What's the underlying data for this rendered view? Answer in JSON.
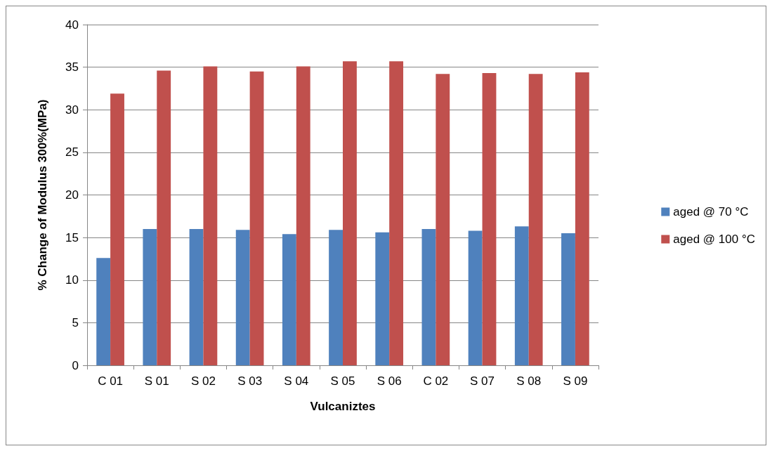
{
  "chart_data": {
    "type": "bar",
    "xlabel": "Vulcaniztes",
    "ylabel": "% Change of Modulus 300%(MPa)",
    "categories": [
      "C 01",
      "S 01",
      "S 02",
      "S 03",
      "S 04",
      "S 05",
      "S 06",
      "C 02",
      "S 07",
      "S 08",
      "S 09"
    ],
    "series": [
      {
        "name": "aged @ 70 °C",
        "color": "#4f81bd",
        "values": [
          12.6,
          16.0,
          16.0,
          15.9,
          15.4,
          15.9,
          15.6,
          16.0,
          15.8,
          16.3,
          15.5
        ]
      },
      {
        "name": "aged @ 100 °C",
        "color": "#c0504d",
        "values": [
          31.9,
          34.6,
          35.1,
          34.5,
          35.1,
          35.7,
          35.7,
          34.2,
          34.3,
          34.2,
          34.4
        ]
      }
    ],
    "ylim": [
      0,
      40
    ],
    "yticks": [
      0,
      5,
      10,
      15,
      20,
      25,
      30,
      35,
      40
    ],
    "grid": "y",
    "legend": "right"
  }
}
